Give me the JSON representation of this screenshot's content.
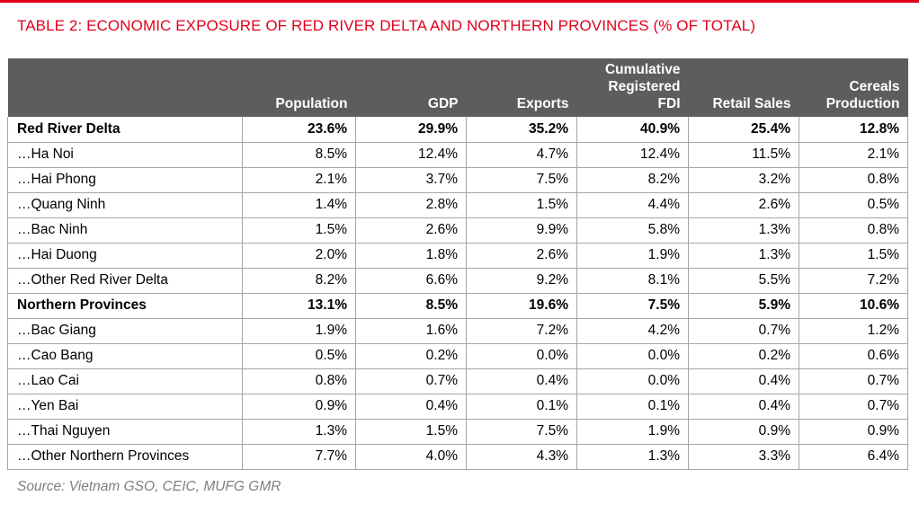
{
  "title": "TABLE 2: ECONOMIC EXPOSURE OF RED RIVER DELTA AND NORTHERN PROVINCES (% OF TOTAL)",
  "accent_color": "#e2001a",
  "header_color": "#5d5d5d",
  "columns": [
    "",
    "Population",
    "GDP",
    "Exports",
    "Cumulative Registered FDI",
    "Retail Sales",
    "Cereals Production"
  ],
  "rows": [
    {
      "bold": true,
      "cells": [
        "Red River Delta",
        "23.6%",
        "29.9%",
        "35.2%",
        "40.9%",
        "25.4%",
        "12.8%"
      ]
    },
    {
      "bold": false,
      "cells": [
        "…Ha Noi",
        "8.5%",
        "12.4%",
        "4.7%",
        "12.4%",
        "11.5%",
        "2.1%"
      ]
    },
    {
      "bold": false,
      "cells": [
        "…Hai Phong",
        "2.1%",
        "3.7%",
        "7.5%",
        "8.2%",
        "3.2%",
        "0.8%"
      ]
    },
    {
      "bold": false,
      "cells": [
        "…Quang Ninh",
        "1.4%",
        "2.8%",
        "1.5%",
        "4.4%",
        "2.6%",
        "0.5%"
      ]
    },
    {
      "bold": false,
      "cells": [
        "…Bac Ninh",
        "1.5%",
        "2.6%",
        "9.9%",
        "5.8%",
        "1.3%",
        "0.8%"
      ]
    },
    {
      "bold": false,
      "cells": [
        "…Hai Duong",
        "2.0%",
        "1.8%",
        "2.6%",
        "1.9%",
        "1.3%",
        "1.5%"
      ]
    },
    {
      "bold": false,
      "cells": [
        "…Other Red River Delta",
        "8.2%",
        "6.6%",
        "9.2%",
        "8.1%",
        "5.5%",
        "7.2%"
      ]
    },
    {
      "bold": true,
      "cells": [
        "Northern Provinces",
        "13.1%",
        "8.5%",
        "19.6%",
        "7.5%",
        "5.9%",
        "10.6%"
      ]
    },
    {
      "bold": false,
      "cells": [
        "…Bac Giang",
        "1.9%",
        "1.6%",
        "7.2%",
        "4.2%",
        "0.7%",
        "1.2%"
      ]
    },
    {
      "bold": false,
      "cells": [
        "…Cao Bang",
        "0.5%",
        "0.2%",
        "0.0%",
        "0.0%",
        "0.2%",
        "0.6%"
      ]
    },
    {
      "bold": false,
      "cells": [
        "…Lao Cai",
        "0.8%",
        "0.7%",
        "0.4%",
        "0.0%",
        "0.4%",
        "0.7%"
      ]
    },
    {
      "bold": false,
      "cells": [
        "…Yen Bai",
        "0.9%",
        "0.4%",
        "0.1%",
        "0.1%",
        "0.4%",
        "0.7%"
      ]
    },
    {
      "bold": false,
      "cells": [
        "…Thai Nguyen",
        "1.3%",
        "1.5%",
        "7.5%",
        "1.9%",
        "0.9%",
        "0.9%"
      ]
    },
    {
      "bold": false,
      "cells": [
        "…Other Northern Provinces",
        "7.7%",
        "4.0%",
        "4.3%",
        "1.3%",
        "3.3%",
        "6.4%"
      ]
    }
  ],
  "source": "Source: Vietnam GSO, CEIC, MUFG GMR"
}
